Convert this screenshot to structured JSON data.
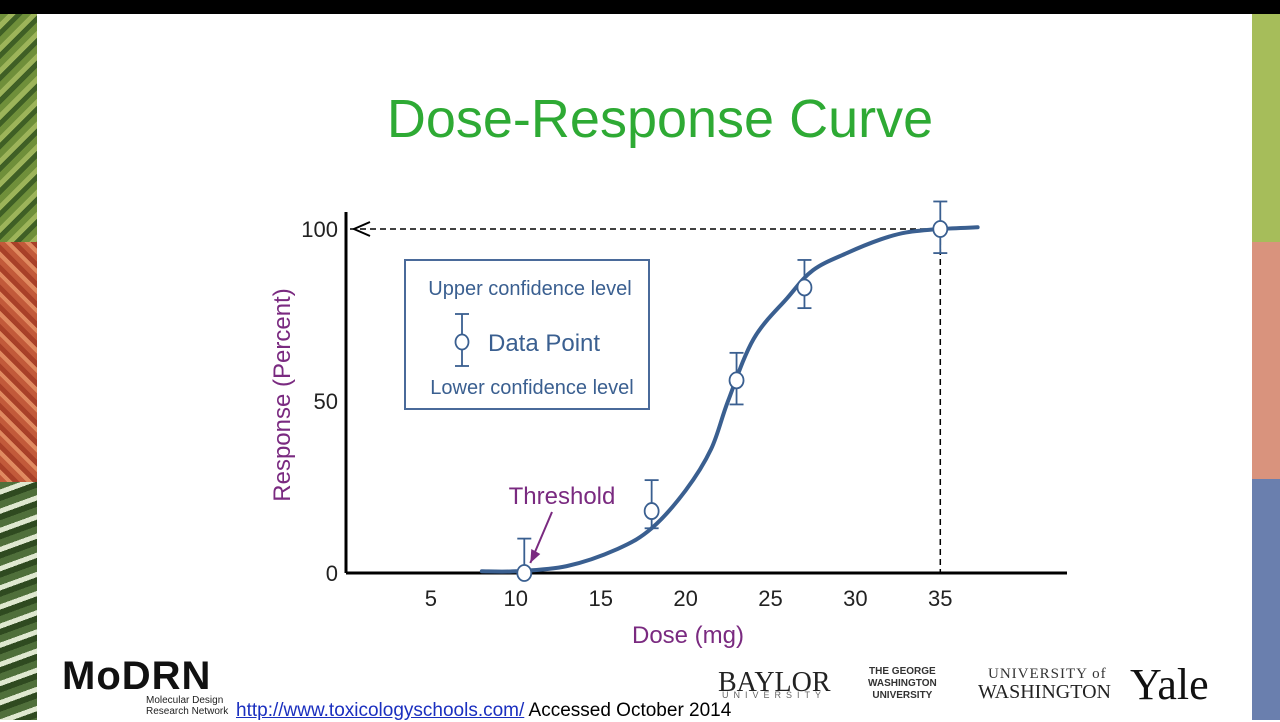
{
  "slide": {
    "title": "Dose-Response Curve",
    "footer_url": "http://www.toxicologyschools.com/",
    "footer_note": " Accessed October 2014",
    "colors": {
      "title": "#2eaa34",
      "curve": "#3a5f90",
      "label": "#7a2a80",
      "frame": "#000000"
    }
  },
  "logos": {
    "modrn": "MoDRN",
    "modrn_sub_1": "Molecular Design",
    "modrn_sub_2": "Research Network",
    "baylor": "BAYLOR",
    "baylor_sub": "UNIVERSITY",
    "gwu_1": "THE GEORGE",
    "gwu_2": "WASHINGTON",
    "gwu_3": "UNIVERSITY",
    "uw_1": "UNIVERSITY of",
    "uw_2": "WASHINGTON",
    "yale": "Yale"
  },
  "chart_data": {
    "type": "line",
    "xlabel": "Dose (mg)",
    "ylabel": "Response (Percent)",
    "x_ticks": [
      5,
      10,
      15,
      20,
      25,
      30,
      35
    ],
    "y_ticks": [
      0,
      50,
      100
    ],
    "xlim": [
      0,
      42
    ],
    "ylim": [
      0,
      110
    ],
    "grid": false,
    "curve": [
      [
        8,
        0.5
      ],
      [
        10,
        0.5
      ],
      [
        13,
        2
      ],
      [
        16,
        7
      ],
      [
        18,
        13
      ],
      [
        20,
        24
      ],
      [
        21.5,
        36
      ],
      [
        22.5,
        50
      ],
      [
        24,
        68
      ],
      [
        26,
        80
      ],
      [
        27.5,
        88
      ],
      [
        29.5,
        93
      ],
      [
        31.5,
        97
      ],
      [
        33,
        99
      ],
      [
        35,
        100
      ],
      [
        37.2,
        100.5
      ]
    ],
    "data_points": [
      {
        "x": 10.5,
        "y": 0,
        "upper": 10,
        "lower": 0
      },
      {
        "x": 18,
        "y": 18,
        "upper": 27,
        "lower": 13
      },
      {
        "x": 23,
        "y": 56,
        "upper": 64,
        "lower": 49
      },
      {
        "x": 27,
        "y": 83,
        "upper": 91,
        "lower": 77
      },
      {
        "x": 35,
        "y": 100,
        "upper": 108,
        "lower": 93
      }
    ],
    "reference_lines": {
      "y": 100,
      "x": 35
    },
    "annotation": {
      "text": "Threshold",
      "x": 10.5,
      "y": 0
    },
    "legend": {
      "placement": "top-left",
      "upper": "Upper confidence level",
      "point": "Data Point",
      "lower": "Lower confidence level"
    }
  }
}
